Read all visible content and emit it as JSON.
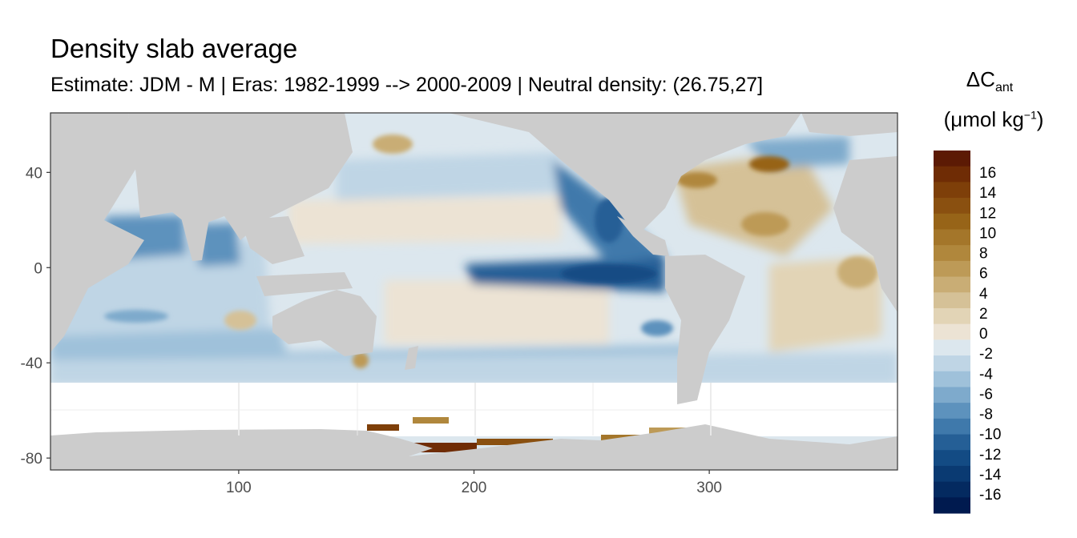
{
  "title": "Density slab average",
  "subtitle": "Estimate: JDM - M | Eras: 1982-1999 --> 2000-2009 | Neutral density: (26.75,27]",
  "legend": {
    "title_symbol": "ΔC",
    "title_subscript": "ant",
    "units_prefix": "(μmol kg",
    "units_superscript": "−1",
    "units_suffix": ")",
    "bins": [
      {
        "label": "16",
        "color": "#5c1a04"
      },
      {
        "label": "",
        "color": "#6f2c05"
      },
      {
        "label": "14",
        "color": "#7e3f09"
      },
      {
        "label": "",
        "color": "#8a5010"
      },
      {
        "label": "12",
        "color": "#976418"
      },
      {
        "label": "",
        "color": "#a4762a"
      },
      {
        "label": "10",
        "color": "#b0873c"
      },
      {
        "label": "",
        "color": "#bd9a57"
      },
      {
        "label": "8",
        "color": "#c9ad75"
      },
      {
        "label": "",
        "color": "#d5c197"
      },
      {
        "label": "6",
        "color": "#e2d4b6"
      },
      {
        "label": "",
        "color": "#ece3d4"
      },
      {
        "label": "4",
        "color": "#e0e8ee"
      },
      {
        "label": "",
        "color": "#c6d9e7"
      },
      {
        "label": "2",
        "color": "#a7c6dc"
      },
      {
        "label": "",
        "color": "#87b0cf"
      },
      {
        "label": "0",
        "color": "#6598bf"
      },
      {
        "label": "",
        "color": "#4880ae"
      },
      {
        "label": "-2",
        "color": "#2f6b9c"
      },
      {
        "label": "",
        "color": "#1c588b"
      }
    ],
    "labels": [
      "16",
      "14",
      "12",
      "10",
      "8",
      "6",
      "4",
      "2",
      "0",
      "-2",
      "-4",
      "-6",
      "-8",
      "-10",
      "-12",
      "-14",
      "-16"
    ],
    "colors": [
      "#5c1a04",
      "#6f2c05",
      "#7e3f09",
      "#8a5010",
      "#976418",
      "#a4762a",
      "#b0873c",
      "#bd9a57",
      "#c9ad75",
      "#d5c197",
      "#e2d4b6",
      "#ece3d4",
      "#dce7ee",
      "#bfd5e5",
      "#9fc1da",
      "#7eaacc",
      "#5d92bd",
      "#3f79ab",
      "#255f96",
      "#134b84",
      "#0a3a72",
      "#042a60",
      "#001a4f"
    ]
  },
  "axes": {
    "x_ticks": [
      "100",
      "200",
      "300"
    ],
    "y_ticks": [
      "40",
      "0",
      "-40",
      "-80"
    ],
    "x_tick_values": [
      100,
      200,
      300
    ],
    "y_tick_values": [
      40,
      0,
      -40,
      -80
    ],
    "xlim": [
      20,
      380
    ],
    "ylim": [
      -85,
      65
    ]
  },
  "colors": {
    "land": "#cccccc",
    "no_data": "#ffffff",
    "panel_border": "#333333",
    "grid": "#ebebeb"
  }
}
